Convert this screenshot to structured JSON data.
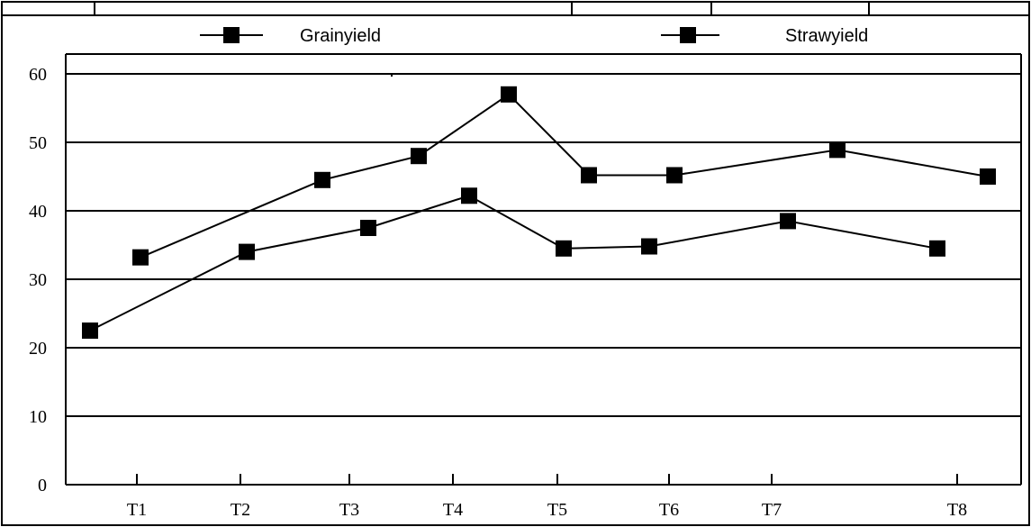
{
  "chart_data": {
    "type": "line",
    "title": "",
    "xlabel": "",
    "ylabel": "",
    "categories": [
      "T1",
      "T2",
      "T3",
      "T4",
      "T5",
      "T6",
      "T7",
      "T8"
    ],
    "yticks": [
      0,
      10,
      20,
      30,
      40,
      50,
      60
    ],
    "ylim": [
      0,
      60
    ],
    "grid": "horizontal",
    "legend_position": "top",
    "series": [
      {
        "name": "Grainyield",
        "values": [
          22.5,
          34,
          37.5,
          42.2,
          34.5,
          34.8,
          38.5,
          34.5
        ],
        "color": "#000000",
        "marker": "square"
      },
      {
        "name": "Strawyield",
        "values": [
          33.2,
          44.5,
          48,
          57,
          45.2,
          45.2,
          48.9,
          45
        ],
        "color": "#000000",
        "marker": "square"
      }
    ]
  }
}
